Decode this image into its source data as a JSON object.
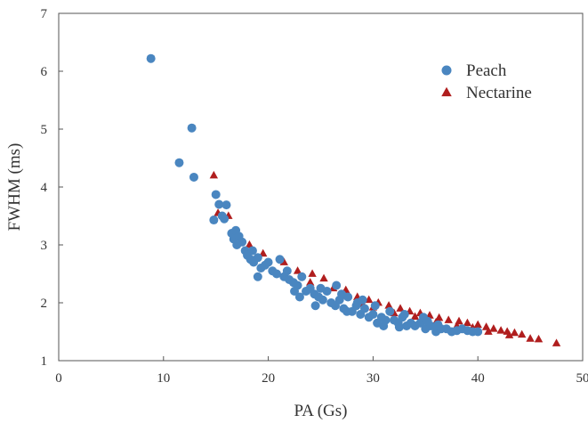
{
  "chart_data": {
    "type": "scatter",
    "xlabel": "PA (Gs)",
    "ylabel": "FWHM (ms)",
    "xlim": [
      0,
      50
    ],
    "ylim": [
      1,
      7
    ],
    "xticks": [
      "0",
      "10",
      "20",
      "30",
      "40",
      "50"
    ],
    "yticks": [
      "1",
      "2",
      "3",
      "4",
      "5",
      "6",
      "7"
    ],
    "legend_position": "top-right",
    "series": [
      {
        "name": "Peach",
        "marker": "circle",
        "color": "#4a86c0",
        "points": [
          [
            8.8,
            6.22
          ],
          [
            11.5,
            4.42
          ],
          [
            12.7,
            5.02
          ],
          [
            12.9,
            4.17
          ],
          [
            14.8,
            3.43
          ],
          [
            15.0,
            3.87
          ],
          [
            15.3,
            3.7
          ],
          [
            15.6,
            3.5
          ],
          [
            16.0,
            3.69
          ],
          [
            15.8,
            3.45
          ],
          [
            16.5,
            3.2
          ],
          [
            16.7,
            3.1
          ],
          [
            16.9,
            3.25
          ],
          [
            17.2,
            3.15
          ],
          [
            17.5,
            3.05
          ],
          [
            17.0,
            3.0
          ],
          [
            17.8,
            2.9
          ],
          [
            18.0,
            2.82
          ],
          [
            18.3,
            2.75
          ],
          [
            18.6,
            2.7
          ],
          [
            19.0,
            2.78
          ],
          [
            19.3,
            2.6
          ],
          [
            19.0,
            2.45
          ],
          [
            19.7,
            2.65
          ],
          [
            20.0,
            2.7
          ],
          [
            20.4,
            2.55
          ],
          [
            20.8,
            2.5
          ],
          [
            21.1,
            2.75
          ],
          [
            21.5,
            2.45
          ],
          [
            22.0,
            2.4
          ],
          [
            22.4,
            2.35
          ],
          [
            22.8,
            2.3
          ],
          [
            23.2,
            2.45
          ],
          [
            23.6,
            2.2
          ],
          [
            24.0,
            2.25
          ],
          [
            24.4,
            2.15
          ],
          [
            24.8,
            2.1
          ],
          [
            25.2,
            2.05
          ],
          [
            25.6,
            2.2
          ],
          [
            26.0,
            2.0
          ],
          [
            26.4,
            1.95
          ],
          [
            26.8,
            2.05
          ],
          [
            27.2,
            1.9
          ],
          [
            27.6,
            2.1
          ],
          [
            28.0,
            1.85
          ],
          [
            28.4,
            1.95
          ],
          [
            28.8,
            1.8
          ],
          [
            29.2,
            1.9
          ],
          [
            29.6,
            1.75
          ],
          [
            30.0,
            1.8
          ],
          [
            30.4,
            1.65
          ],
          [
            30.8,
            1.75
          ],
          [
            31.2,
            1.7
          ],
          [
            31.6,
            1.85
          ],
          [
            32.0,
            1.7
          ],
          [
            32.4,
            1.65
          ],
          [
            32.8,
            1.75
          ],
          [
            33.2,
            1.6
          ],
          [
            33.6,
            1.65
          ],
          [
            34.0,
            1.6
          ],
          [
            34.5,
            1.65
          ],
          [
            35.0,
            1.55
          ],
          [
            35.5,
            1.6
          ],
          [
            36.0,
            1.5
          ],
          [
            36.5,
            1.55
          ],
          [
            37.0,
            1.55
          ],
          [
            37.5,
            1.5
          ],
          [
            38.0,
            1.52
          ],
          [
            38.5,
            1.55
          ],
          [
            39.0,
            1.52
          ],
          [
            39.5,
            1.5
          ],
          [
            40.0,
            1.5
          ],
          [
            23.0,
            2.1
          ],
          [
            24.5,
            1.95
          ],
          [
            25.0,
            2.25
          ],
          [
            26.5,
            2.3
          ],
          [
            27.5,
            1.85
          ],
          [
            29.0,
            2.05
          ],
          [
            31.0,
            1.6
          ],
          [
            33.0,
            1.8
          ],
          [
            34.8,
            1.75
          ],
          [
            36.2,
            1.62
          ],
          [
            22.5,
            2.2
          ],
          [
            21.8,
            2.55
          ],
          [
            18.5,
            2.9
          ],
          [
            27.0,
            2.15
          ],
          [
            28.5,
            2.0
          ],
          [
            30.2,
            1.95
          ],
          [
            32.5,
            1.58
          ],
          [
            35.2,
            1.68
          ]
        ]
      },
      {
        "name": "Nectarine",
        "marker": "triangle",
        "color": "#b01e1e",
        "points": [
          [
            14.8,
            4.2
          ],
          [
            15.2,
            3.55
          ],
          [
            16.2,
            3.5
          ],
          [
            17.0,
            3.2
          ],
          [
            18.2,
            3.0
          ],
          [
            19.5,
            2.85
          ],
          [
            21.5,
            2.7
          ],
          [
            22.8,
            2.55
          ],
          [
            24.2,
            2.5
          ],
          [
            25.3,
            2.42
          ],
          [
            26.2,
            2.25
          ],
          [
            27.4,
            2.22
          ],
          [
            28.5,
            2.1
          ],
          [
            29.6,
            2.05
          ],
          [
            30.5,
            2.0
          ],
          [
            31.5,
            1.95
          ],
          [
            32.6,
            1.9
          ],
          [
            33.5,
            1.85
          ],
          [
            34.5,
            1.82
          ],
          [
            35.4,
            1.78
          ],
          [
            36.3,
            1.74
          ],
          [
            37.2,
            1.7
          ],
          [
            38.2,
            1.68
          ],
          [
            39.0,
            1.65
          ],
          [
            40.0,
            1.62
          ],
          [
            40.8,
            1.58
          ],
          [
            41.5,
            1.55
          ],
          [
            42.2,
            1.52
          ],
          [
            42.8,
            1.5
          ],
          [
            43.5,
            1.48
          ],
          [
            44.2,
            1.45
          ],
          [
            45.0,
            1.38
          ],
          [
            45.8,
            1.37
          ],
          [
            47.5,
            1.3
          ],
          [
            30.0,
            1.92
          ],
          [
            32.0,
            1.82
          ],
          [
            34.0,
            1.76
          ],
          [
            36.0,
            1.66
          ],
          [
            38.0,
            1.6
          ],
          [
            39.5,
            1.57
          ],
          [
            41.0,
            1.5
          ],
          [
            43.0,
            1.44
          ],
          [
            24.0,
            2.35
          ],
          [
            27.0,
            2.12
          ],
          [
            29.0,
            1.98
          ]
        ]
      }
    ]
  }
}
